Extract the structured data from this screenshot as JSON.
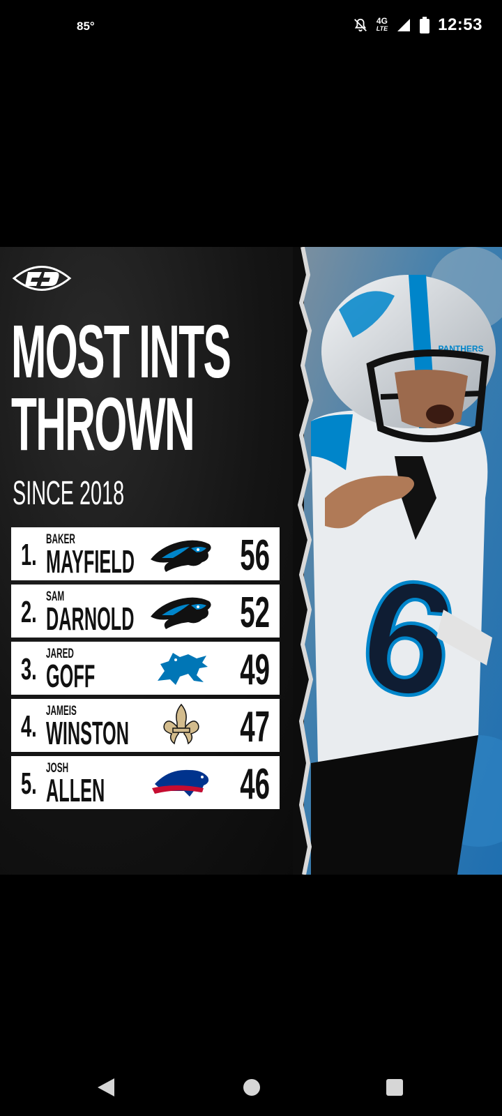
{
  "status_bar": {
    "temperature": "85°",
    "network": "4G",
    "network_sub": "LTE",
    "time": "12:53"
  },
  "graphic": {
    "headline_line1": "MOST INTS",
    "headline_line2": "THROWN",
    "subhead": "SINCE 2018",
    "photo_helmet_text": "PANTHERS",
    "photo_jersey_number": "6",
    "leaderboard": [
      {
        "rank": "1.",
        "first": "BAKER",
        "last": "MAYFIELD",
        "team_logo": "panther-logo-icon",
        "value": "56"
      },
      {
        "rank": "2.",
        "first": "SAM",
        "last": "DARNOLD",
        "team_logo": "panther-logo-icon",
        "value": "52"
      },
      {
        "rank": "3.",
        "first": "JARED",
        "last": "GOFF",
        "team_logo": "lion-logo-icon",
        "value": "49"
      },
      {
        "rank": "4.",
        "first": "JAMEIS",
        "last": "WINSTON",
        "team_logo": "fleur-de-lis-logo-icon",
        "value": "47"
      },
      {
        "rank": "5.",
        "first": "JOSH",
        "last": "ALLEN",
        "team_logo": "buffalo-logo-icon",
        "value": "46"
      }
    ]
  },
  "colors": {
    "panthers_blue": "#0085CA",
    "lions_blue": "#0076B6",
    "saints_gold": "#D3BC8D",
    "bills_blue": "#00338D",
    "bills_red": "#C60C30"
  },
  "icons": {
    "brand_logo": "football-logo-icon",
    "mute": "notifications-off-icon",
    "signal": "signal-icon",
    "battery": "battery-icon",
    "nav_back": "back-triangle-icon",
    "nav_home": "home-circle-icon",
    "nav_recents": "recents-square-icon"
  }
}
